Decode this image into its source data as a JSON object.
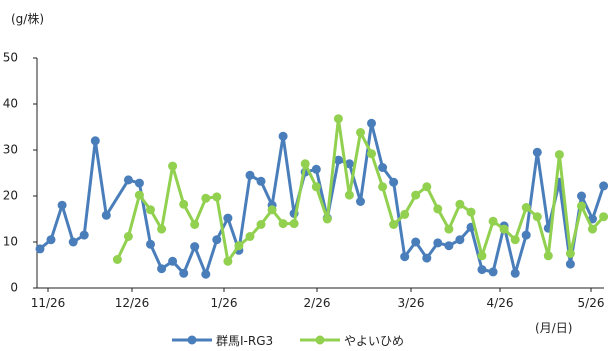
{
  "chart_data": {
    "type": "line",
    "y_unit_label": "(g/株)",
    "x_unit_label": "(月/日)",
    "ylim": [
      0,
      50
    ],
    "y_ticks": [
      "0",
      "10",
      "20",
      "30",
      "40",
      "50"
    ],
    "x_tick_labels": [
      "11/26",
      "12/26",
      "1/26",
      "2/26",
      "3/26",
      "4/26",
      "5/26"
    ],
    "grid": false,
    "legend_position": "bottom",
    "colors": {
      "series1": "#4a7ebb",
      "series2": "#92d050"
    },
    "series": [
      {
        "name": "群馬Ⅰ-RG3",
        "values": [
          8.5,
          10.5,
          18,
          10,
          11.5,
          32,
          15.8,
          null,
          23.5,
          22.8,
          9.5,
          4.2,
          5.8,
          3.2,
          9,
          3,
          10.5,
          15.2,
          8.2,
          24.5,
          23.2,
          18,
          33,
          16.2,
          25.2,
          25.8,
          15.2,
          27.8,
          27,
          18.8,
          35.8,
          26.2,
          23,
          6.8,
          10,
          6.5,
          9.8,
          9.2,
          10.5,
          13.2,
          4,
          3.5,
          13.5,
          3.2,
          11.5,
          29.5,
          13,
          23,
          5.2,
          20,
          15,
          22.2
        ]
      },
      {
        "name": "やよいひめ",
        "values": [
          null,
          null,
          null,
          null,
          null,
          null,
          null,
          6.2,
          11.2,
          20.2,
          17,
          12.8,
          26.5,
          18.2,
          13.8,
          19.5,
          19.8,
          5.8,
          9.2,
          11.2,
          13.8,
          17,
          14,
          14,
          27,
          22,
          15,
          36.8,
          20.2,
          33.8,
          29.2,
          22,
          13.8,
          16,
          20.2,
          22,
          17.2,
          12.8,
          18.2,
          16.5,
          7,
          14.5,
          12.8,
          10.5,
          17.5,
          15.5,
          7,
          29,
          7.5,
          17.8,
          12.8,
          15.5
        ]
      }
    ]
  }
}
